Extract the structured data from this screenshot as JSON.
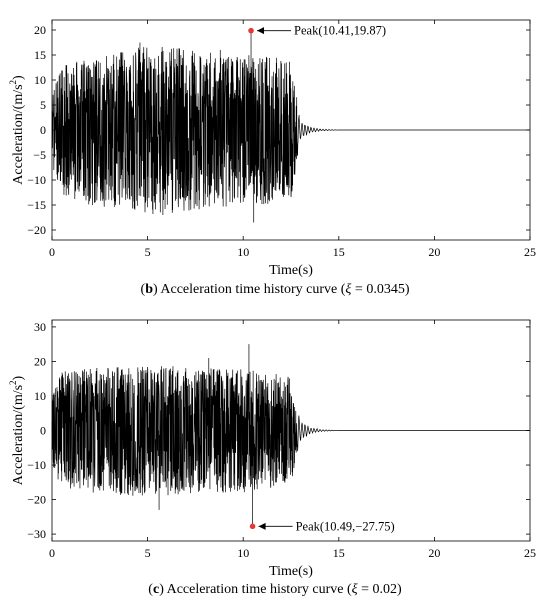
{
  "chart_data": [
    {
      "type": "line",
      "title": "",
      "xlabel": "Time(s)",
      "ylabel_main": "Acceleration/(m/s",
      "ylabel_sup": "2",
      "ylabel_close": ")",
      "xlim": [
        0,
        25
      ],
      "ylim": [
        -22,
        22
      ],
      "xticks": [
        0,
        5,
        10,
        15,
        20,
        25
      ],
      "yticks": [
        -20,
        -15,
        -10,
        -5,
        0,
        5,
        10,
        15,
        20
      ],
      "grid": false,
      "envelope": [
        [
          0,
          7
        ],
        [
          0.5,
          13
        ],
        [
          2,
          15
        ],
        [
          4,
          16
        ],
        [
          5,
          17
        ],
        [
          8,
          16
        ],
        [
          10,
          15
        ],
        [
          11,
          15
        ],
        [
          12.5,
          14
        ],
        [
          13,
          2
        ],
        [
          13.5,
          0.6
        ],
        [
          14,
          0.2
        ],
        [
          15,
          0
        ],
        [
          25,
          0
        ]
      ],
      "spikes": [
        {
          "x": 5.8,
          "y": -17
        },
        {
          "x": 4.6,
          "y": 17.5
        },
        {
          "x": 8.8,
          "y": 16
        },
        {
          "x": 10.55,
          "y": -18.5
        }
      ],
      "series": [
        {
          "values_note": "",
          "peak": {
            "x": 10.41,
            "y": 19.87
          }
        }
      ],
      "annotation": {
        "text": "Peak(10.41,19.87)",
        "x": 10.41,
        "y": 19.87
      },
      "peak_color": "#e53935",
      "caption": {
        "label": "b",
        "text": "Acceleration time history curve (",
        "symbol": "ξ",
        "eq": " = 0.0345)"
      }
    },
    {
      "type": "line",
      "title": "",
      "xlabel": "Time(s)",
      "ylabel_main": "Acceleration/(m/s",
      "ylabel_sup": "2",
      "ylabel_close": ")",
      "xlim": [
        0,
        25
      ],
      "ylim": [
        -32,
        32
      ],
      "xticks": [
        0,
        5,
        10,
        15,
        20,
        25
      ],
      "yticks": [
        -30,
        -20,
        -10,
        0,
        10,
        20,
        30
      ],
      "grid": false,
      "envelope": [
        [
          0,
          10
        ],
        [
          0.5,
          17
        ],
        [
          2,
          18
        ],
        [
          4,
          19
        ],
        [
          6,
          19
        ],
        [
          8,
          18
        ],
        [
          10,
          18
        ],
        [
          11,
          17
        ],
        [
          12.5,
          16
        ],
        [
          13,
          3
        ],
        [
          13.5,
          1
        ],
        [
          14,
          0.3
        ],
        [
          15,
          0
        ],
        [
          25,
          0
        ]
      ],
      "spikes": [
        {
          "x": 5.6,
          "y": -23
        },
        {
          "x": 10.3,
          "y": 25
        },
        {
          "x": 8.2,
          "y": 21
        }
      ],
      "series": [
        {
          "values_note": "",
          "peak": {
            "x": 10.49,
            "y": -27.75
          }
        }
      ],
      "annotation": {
        "text": "Peak(10.49,−27.75)",
        "x": 10.49,
        "y": -27.75
      },
      "peak_color": "#e53935",
      "caption": {
        "label": "c",
        "text": "Acceleration time history curve (",
        "symbol": "ξ",
        "eq": " = 0.02)"
      }
    }
  ]
}
